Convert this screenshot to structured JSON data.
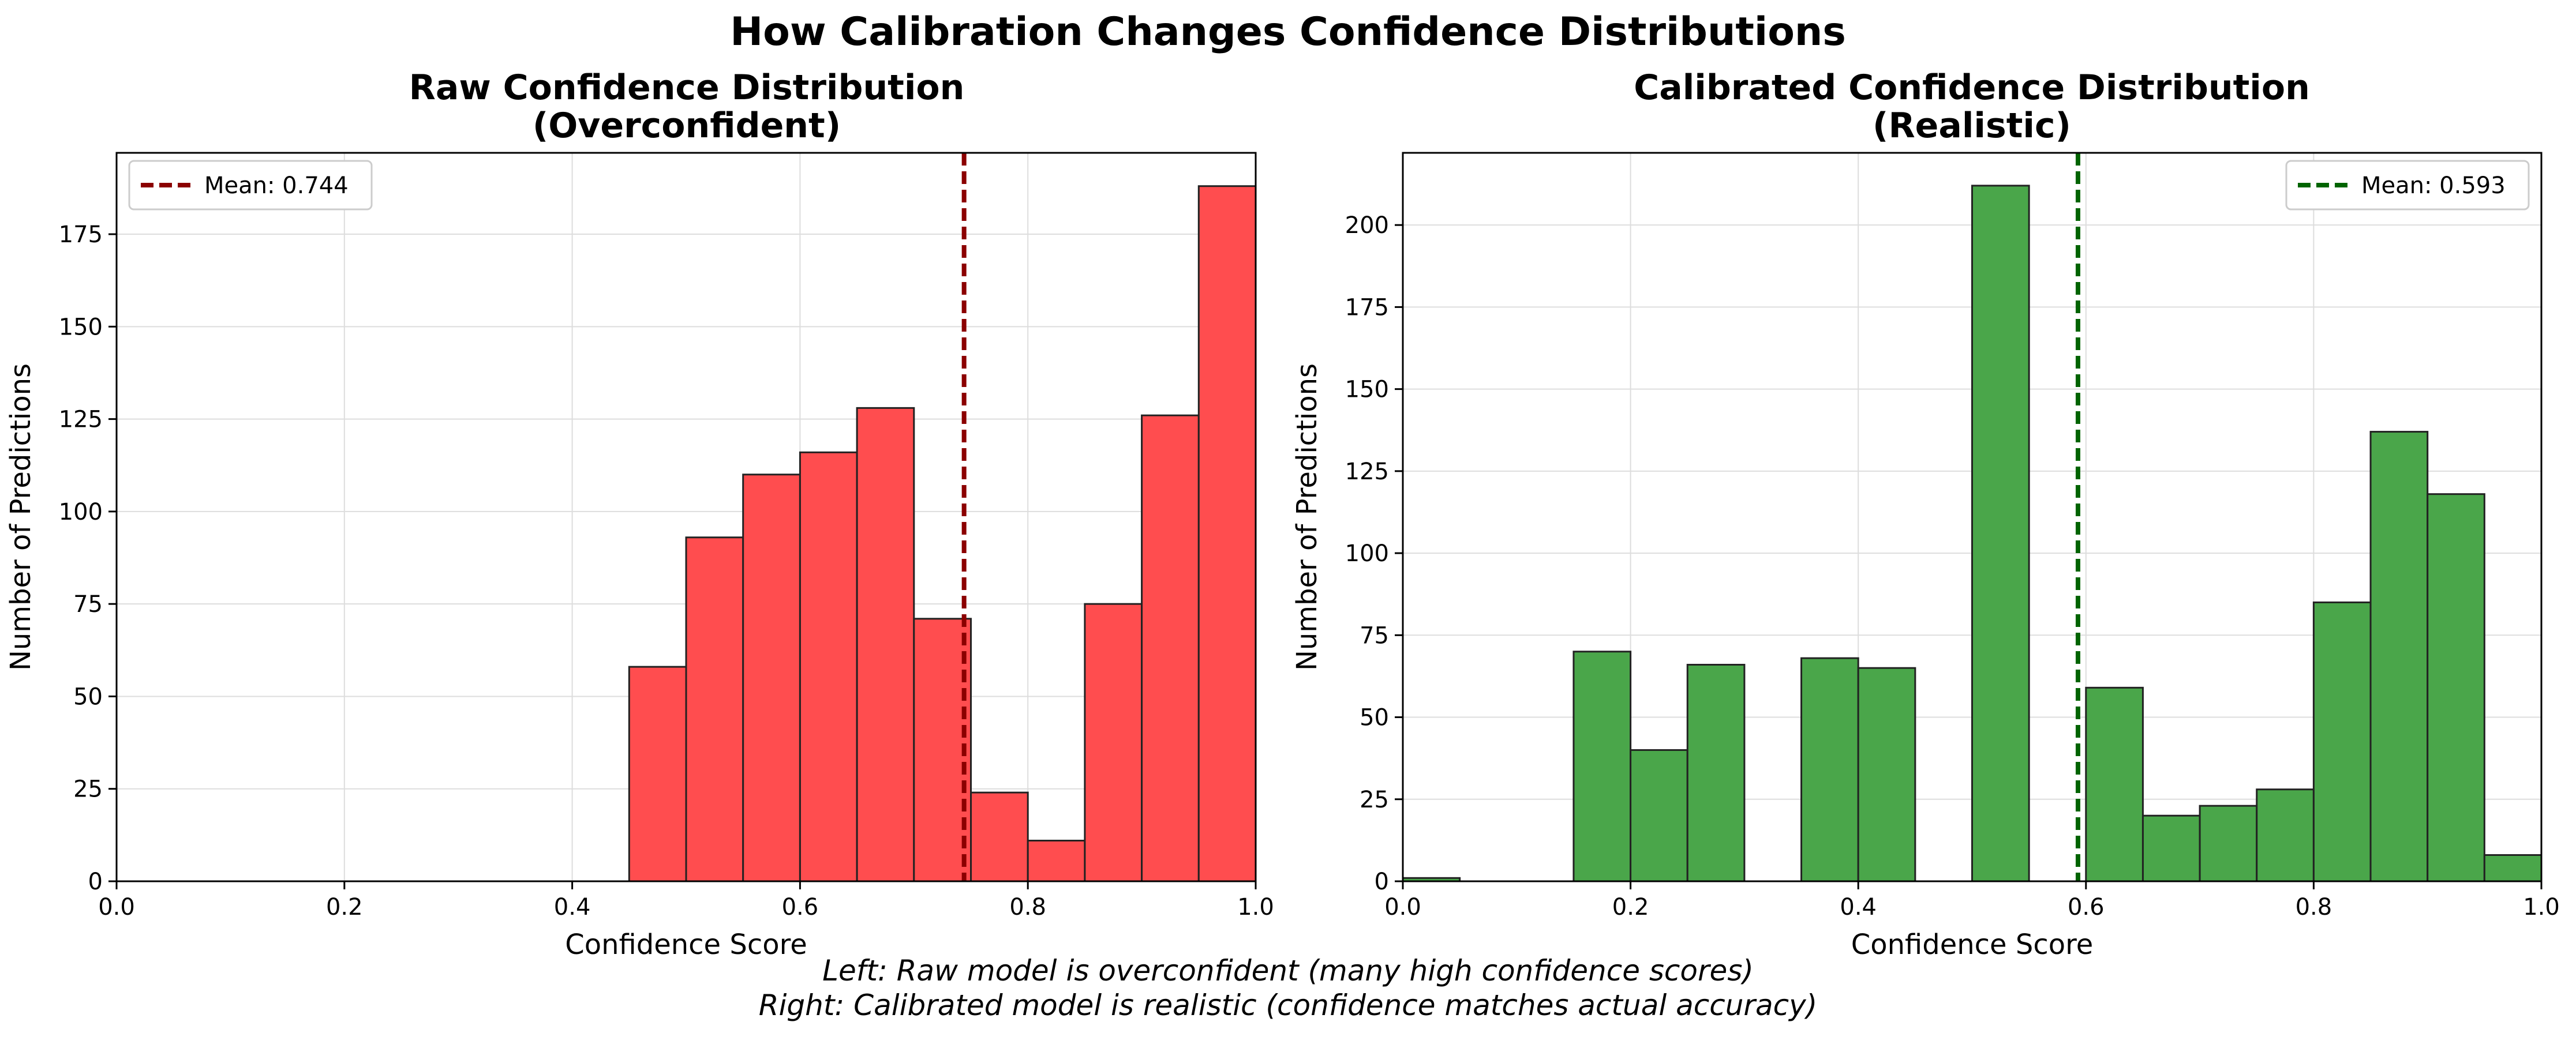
{
  "figure": {
    "title": "How Calibration Changes Confidence Distributions",
    "caption_lines": [
      "Left: Raw model is overconfident (many high confidence scores)",
      "Right: Calibrated model is realistic (confidence matches actual accuracy)"
    ]
  },
  "colors": {
    "raw_bar": "#ff4d4f",
    "calibrated_bar": "#4aa64a",
    "raw_mean_line": "#8b0000",
    "calibrated_mean_line": "#006400",
    "grid": "#dddddd",
    "bar_edge": "#222222"
  },
  "chart_data": [
    {
      "type": "bar",
      "title_lines": [
        "Raw Confidence Distribution",
        "(Overconfident)"
      ],
      "xlabel": "Confidence Score",
      "ylabel": "Number of Predictions",
      "xlim": [
        0.0,
        1.0
      ],
      "ylim": [
        0,
        197
      ],
      "xticks": [
        0.0,
        0.2,
        0.4,
        0.6,
        0.8,
        1.0
      ],
      "xtick_labels": [
        "0.0",
        "0.2",
        "0.4",
        "0.6",
        "0.8",
        "1.0"
      ],
      "yticks": [
        0,
        25,
        50,
        75,
        100,
        125,
        150,
        175
      ],
      "grid": true,
      "bin_width": 0.05,
      "bins": [
        {
          "x0": 0.45,
          "count": 58
        },
        {
          "x0": 0.5,
          "count": 93
        },
        {
          "x0": 0.55,
          "count": 110
        },
        {
          "x0": 0.6,
          "count": 116
        },
        {
          "x0": 0.65,
          "count": 128
        },
        {
          "x0": 0.7,
          "count": 71
        },
        {
          "x0": 0.75,
          "count": 24
        },
        {
          "x0": 0.8,
          "count": 11
        },
        {
          "x0": 0.85,
          "count": 75
        },
        {
          "x0": 0.9,
          "count": 126
        },
        {
          "x0": 0.95,
          "count": 188
        }
      ],
      "mean": 0.744,
      "legend": {
        "label": "Mean: 0.744",
        "placement": "upper left"
      }
    },
    {
      "type": "bar",
      "title_lines": [
        "Calibrated Confidence Distribution",
        "(Realistic)"
      ],
      "xlabel": "Confidence Score",
      "ylabel": "Number of Predictions",
      "xlim": [
        0.0,
        1.0
      ],
      "ylim": [
        0,
        222
      ],
      "xticks": [
        0.0,
        0.2,
        0.4,
        0.6,
        0.8,
        1.0
      ],
      "xtick_labels": [
        "0.0",
        "0.2",
        "0.4",
        "0.6",
        "0.8",
        "1.0"
      ],
      "yticks": [
        0,
        25,
        50,
        75,
        100,
        125,
        150,
        175,
        200
      ],
      "grid": true,
      "bin_width": 0.05,
      "bins": [
        {
          "x0": 0.0,
          "count": 1
        },
        {
          "x0": 0.15,
          "count": 70
        },
        {
          "x0": 0.2,
          "count": 40
        },
        {
          "x0": 0.25,
          "count": 66
        },
        {
          "x0": 0.35,
          "count": 68
        },
        {
          "x0": 0.4,
          "count": 65
        },
        {
          "x0": 0.5,
          "count": 212
        },
        {
          "x0": 0.6,
          "count": 59
        },
        {
          "x0": 0.65,
          "count": 20
        },
        {
          "x0": 0.7,
          "count": 23
        },
        {
          "x0": 0.75,
          "count": 28
        },
        {
          "x0": 0.8,
          "count": 85
        },
        {
          "x0": 0.85,
          "count": 137
        },
        {
          "x0": 0.9,
          "count": 118
        },
        {
          "x0": 0.95,
          "count": 8
        }
      ],
      "mean": 0.593,
      "legend": {
        "label": "Mean: 0.593",
        "placement": "upper right"
      }
    }
  ]
}
